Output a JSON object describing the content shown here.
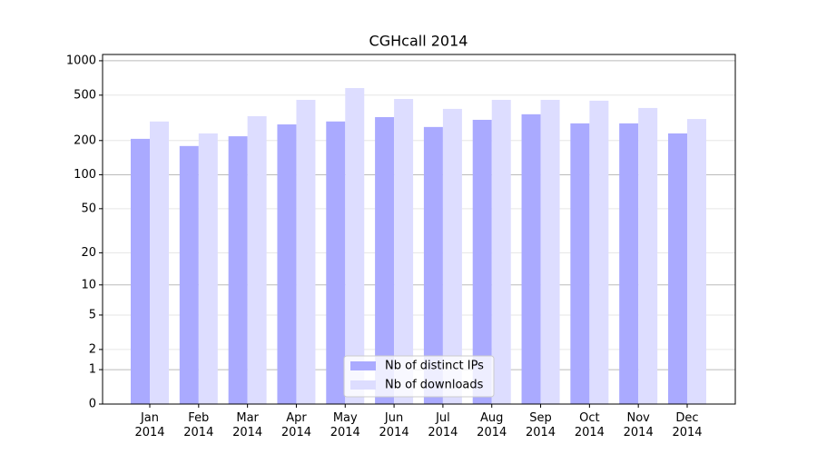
{
  "chart_data": {
    "type": "bar",
    "title": "CGHcall 2014",
    "categories": [
      "Jan\n2014",
      "Feb\n2014",
      "Mar\n2014",
      "Apr\n2014",
      "May\n2014",
      "Jun\n2014",
      "Jul\n2014",
      "Aug\n2014",
      "Sep\n2014",
      "Oct\n2014",
      "Nov\n2014",
      "Dec\n2014"
    ],
    "series": [
      {
        "name": "Nb of distinct IPs",
        "color": "#aaaaff",
        "values": [
          207,
          179,
          218,
          277,
          294,
          321,
          263,
          304,
          340,
          283,
          283,
          231
        ]
      },
      {
        "name": "Nb of downloads",
        "color": "#ddddff",
        "values": [
          294,
          231,
          327,
          455,
          577,
          463,
          379,
          455,
          455,
          447,
          386,
          309
        ]
      }
    ],
    "yscale": "log1p",
    "ylim": [
      0,
      1135
    ],
    "yticks": [
      0,
      1,
      2,
      5,
      10,
      20,
      50,
      100,
      200,
      500,
      1000
    ],
    "grid": true,
    "legend": "lower center"
  }
}
